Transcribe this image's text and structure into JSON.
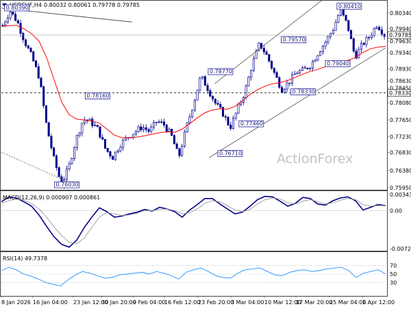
{
  "header": {
    "symbol_text": "USDCHF,H4",
    "ohlc_text": "0.80032 0.80061 0.79778 0.79785"
  },
  "watermark": "ActionForex",
  "colors": {
    "candle": "#00008b",
    "sma": "#ff0000",
    "macd_line": "#00008b",
    "macd_signal": "#9a9a9a",
    "rsi_line": "#1e90ff",
    "label_border": "#00008b",
    "trendline": "#333333",
    "channel": "#555555",
    "hline": "#000000"
  },
  "price_axis": {
    "ticks": [
      "0.80630",
      "0.80340",
      "0.79940",
      "0.79630",
      "0.79340",
      "0.78930",
      "0.78630",
      "0.78450",
      "0.78080",
      "0.77650",
      "0.77230",
      "0.76830",
      "0.76380",
      "0.75950"
    ],
    "current_price": "0.79785",
    "hline_label": "0.78330"
  },
  "price_labels": [
    {
      "text": "0.80390"
    },
    {
      "text": "0.80410"
    },
    {
      "text": "0.79570"
    },
    {
      "text": "0.78770"
    },
    {
      "text": "0.78160"
    },
    {
      "text": "0.79040"
    },
    {
      "text": "0.78330"
    },
    {
      "text": "0.77460"
    },
    {
      "text": "0.76710"
    },
    {
      "text": "0.76030"
    }
  ],
  "macd": {
    "title": "MACD(12,26,9) 0.000907 0.000861",
    "ticks": [
      "0.003432",
      "0.00",
      "-0.007223"
    ]
  },
  "rsi": {
    "title": "RSI(14) 49.7378",
    "ticks": [
      "70",
      "50",
      "30"
    ]
  },
  "x_axis": {
    "labels": [
      "8 Jan 2026",
      "16 Jan 04:00",
      "23 Jan 12:00",
      "30 Jan 20:00",
      "9 Feb 04:00",
      "16 Feb 12:00",
      "23 Feb 20:00",
      "3 Mar 04:00",
      "10 Mar 12:00",
      "17 Mar 20:00",
      "25 Mar 04:00",
      "1 Apr 12:00"
    ]
  },
  "chart_data": [
    {
      "type": "candlestick",
      "title": "USDCHF,H4",
      "subtitle": "0.80032 0.80061 0.79778 0.79785",
      "ylim": [
        0.7593,
        0.8063
      ],
      "x": [
        "8 Jan 2026",
        "16 Jan 04:00",
        "23 Jan 12:00",
        "30 Jan 20:00",
        "9 Feb 04:00",
        "16 Feb 12:00",
        "23 Feb 20:00",
        "3 Mar 04:00",
        "10 Mar 12:00",
        "17 Mar 20:00",
        "25 Mar 04:00",
        "1 Apr 12:00"
      ],
      "close_path": [
        0.8003,
        0.8039,
        0.8012,
        0.7962,
        0.7922,
        0.7871,
        0.7748,
        0.7666,
        0.7603,
        0.7646,
        0.7716,
        0.7767,
        0.776,
        0.7741,
        0.7692,
        0.7671,
        0.7703,
        0.7722,
        0.7735,
        0.7748,
        0.7736,
        0.7762,
        0.7753,
        0.7725,
        0.7671,
        0.7745,
        0.7807,
        0.7875,
        0.7842,
        0.7806,
        0.7781,
        0.7746,
        0.7792,
        0.7836,
        0.7905,
        0.7957,
        0.7926,
        0.7883,
        0.7842,
        0.786,
        0.7885,
        0.789,
        0.7904,
        0.7935,
        0.7962,
        0.7993,
        0.8041,
        0.8002,
        0.7923,
        0.7955,
        0.7975,
        0.8006,
        0.7979
      ],
      "price_labels": [
        0.8039,
        0.8041,
        0.7957,
        0.7877,
        0.7816,
        0.7904,
        0.7833,
        0.7746,
        0.7671,
        0.7603
      ],
      "sma_path": [
        0.8,
        0.8002,
        0.8003,
        0.7994,
        0.7982,
        0.7963,
        0.7922,
        0.7866,
        0.781,
        0.7778,
        0.7767,
        0.7765,
        0.7762,
        0.7757,
        0.7742,
        0.7727,
        0.772,
        0.772,
        0.7722,
        0.7725,
        0.7729,
        0.7733,
        0.7735,
        0.7734,
        0.7742,
        0.7756,
        0.777,
        0.7783,
        0.779,
        0.7793,
        0.7792,
        0.7799,
        0.7813,
        0.7829,
        0.7841,
        0.785,
        0.7856,
        0.7859,
        0.7864,
        0.7872,
        0.788,
        0.7887,
        0.7892,
        0.7899,
        0.7907,
        0.7911,
        0.7915,
        0.7922,
        0.7935,
        0.7944,
        0.7948,
        0.795
      ],
      "hline": 0.7833,
      "current_price": 0.79785,
      "trendlines": [
        {
          "name": "descending-resistance",
          "from": [
            0,
            0.8046
          ],
          "to": [
            0.34,
            0.8011
          ]
        },
        {
          "name": "channel-upper",
          "from": [
            0.555,
            0.7856
          ],
          "to": [
            0.84,
            0.807
          ]
        },
        {
          "name": "channel-lower",
          "from": [
            0.54,
            0.767
          ],
          "to": [
            1.0,
            0.7946
          ]
        },
        {
          "name": "support-dotted",
          "from": [
            0,
            0.7684
          ],
          "to": [
            0.195,
            0.76
          ]
        }
      ]
    },
    {
      "type": "line",
      "title": "MACD(12,26,9) 0.000907 0.000861",
      "ylim": [
        -0.007223,
        0.003432
      ],
      "series": [
        {
          "name": "MACD",
          "values": [
            0.0016,
            0.0025,
            0.0023,
            0.0016,
            0.0008,
            -0.0008,
            -0.0029,
            -0.0048,
            -0.0062,
            -0.0067,
            -0.0054,
            -0.0031,
            -0.0012,
            0.0005,
            -0.0002,
            -0.0012,
            -0.001,
            -0.0006,
            -0.0003,
            0.0002,
            -0.0001,
            0.0006,
            0.0003,
            -0.0002,
            -0.0012,
            0.0001,
            0.0011,
            0.0022,
            0.0022,
            0.0012,
            0.0003,
            -0.0006,
            -0.0003,
            0.0008,
            0.002,
            0.0026,
            0.0025,
            0.0017,
            0.0008,
            0.0013,
            0.0024,
            0.0022,
            0.0012,
            0.001,
            0.0018,
            0.0023,
            0.0025,
            0.0018,
            0.0001,
            0.0006,
            0.0011,
            0.0009
          ]
        },
        {
          "name": "Signal",
          "values": [
            0.0013,
            0.0018,
            0.0021,
            0.0019,
            0.0013,
            0.0003,
            -0.0012,
            -0.003,
            -0.0046,
            -0.0058,
            -0.0061,
            -0.005,
            -0.0031,
            -0.0012,
            -0.0004,
            -0.0006,
            -0.0009,
            -0.0008,
            -0.0005,
            0.0,
            0.0,
            0.0002,
            0.0003,
            0.0,
            -0.0006,
            -0.0004,
            0.0003,
            0.0013,
            0.0018,
            0.0016,
            0.0009,
            0.0001,
            -0.0002,
            0.0002,
            0.0012,
            0.002,
            0.0023,
            0.0021,
            0.0014,
            0.0012,
            0.0017,
            0.002,
            0.0016,
            0.0012,
            0.0014,
            0.0019,
            0.0022,
            0.002,
            0.0011,
            0.0008,
            0.0009,
            0.0009
          ]
        }
      ]
    },
    {
      "type": "line",
      "title": "RSI(14) 49.7378",
      "ylim": [
        0,
        100
      ],
      "levels": [
        70,
        50,
        30
      ],
      "series": [
        {
          "name": "RSI(14)",
          "values": [
            58,
            66,
            60,
            50,
            45,
            38,
            30,
            26,
            22,
            36,
            48,
            56,
            52,
            46,
            40,
            42,
            48,
            50,
            52,
            54,
            50,
            56,
            52,
            46,
            38,
            54,
            60,
            64,
            56,
            46,
            42,
            40,
            52,
            60,
            62,
            64,
            56,
            48,
            46,
            54,
            58,
            60,
            56,
            58,
            62,
            64,
            66,
            58,
            42,
            52,
            56,
            60,
            50
          ]
        }
      ]
    }
  ]
}
